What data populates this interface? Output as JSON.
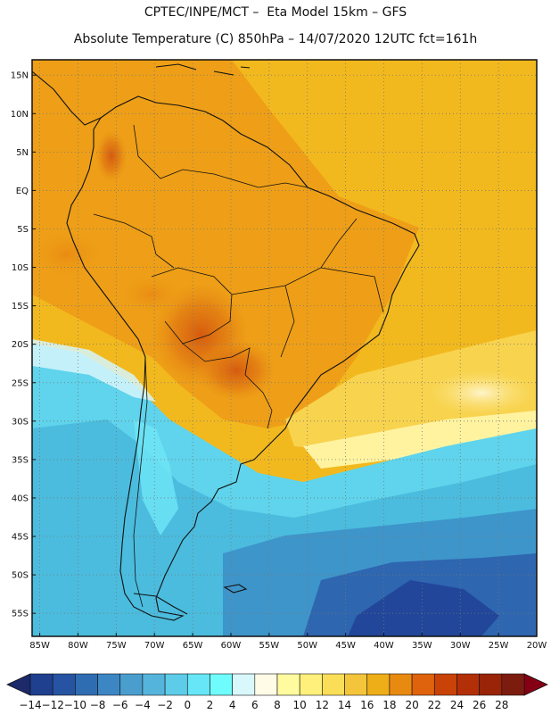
{
  "header": {
    "line1": "CPTEC/INPE/MCT –  Eta Model 15km – GFS",
    "line2": "Absolute Temperature (C) 850hPa – 14/07/2020 12UTC fct=161h"
  },
  "map": {
    "lon_labels": [
      "85W",
      "80W",
      "75W",
      "70W",
      "65W",
      "60W",
      "55W",
      "50W",
      "45W",
      "40W",
      "35W",
      "30W",
      "25W",
      "20W"
    ],
    "lat_labels": [
      "15N",
      "10N",
      "5N",
      "EQ",
      "5S",
      "10S",
      "15S",
      "20S",
      "25S",
      "30S",
      "35S",
      "40S",
      "45S",
      "50S",
      "55S"
    ],
    "lon_values": [
      -85,
      -80,
      -75,
      -70,
      -65,
      -60,
      -55,
      -50,
      -45,
      -40,
      -35,
      -30,
      -25,
      -20
    ],
    "lat_values": [
      15,
      10,
      5,
      0,
      -5,
      -10,
      -15,
      -20,
      -25,
      -30,
      -35,
      -40,
      -45,
      -50,
      -55
    ],
    "extent": {
      "lon_min": -86,
      "lon_max": -20,
      "lat_min": -58,
      "lat_max": 17
    }
  },
  "colorbar": {
    "labels": [
      "-14",
      "-12",
      "-10",
      "-8",
      "-6",
      "-4",
      "-2",
      "0",
      "2",
      "4",
      "6",
      "8",
      "10",
      "12",
      "14",
      "16",
      "18",
      "20",
      "22",
      "24",
      "26",
      "28"
    ],
    "colors": [
      "#1f3f8f",
      "#2654a2",
      "#2f6db3",
      "#3d86c4",
      "#4a9ece",
      "#55b4dc",
      "#5dcce8",
      "#66e6f6",
      "#6ffcfc",
      "#d8f8fc",
      "#fffbe6",
      "#fffb9e",
      "#fff07c",
      "#fbde58",
      "#f4c53a",
      "#eeae17",
      "#e98a10",
      "#df620c",
      "#c94309",
      "#b32f08",
      "#992408",
      "#7c1c0f"
    ],
    "under_color": "#1c2a6b",
    "over_color": "#850015"
  }
}
